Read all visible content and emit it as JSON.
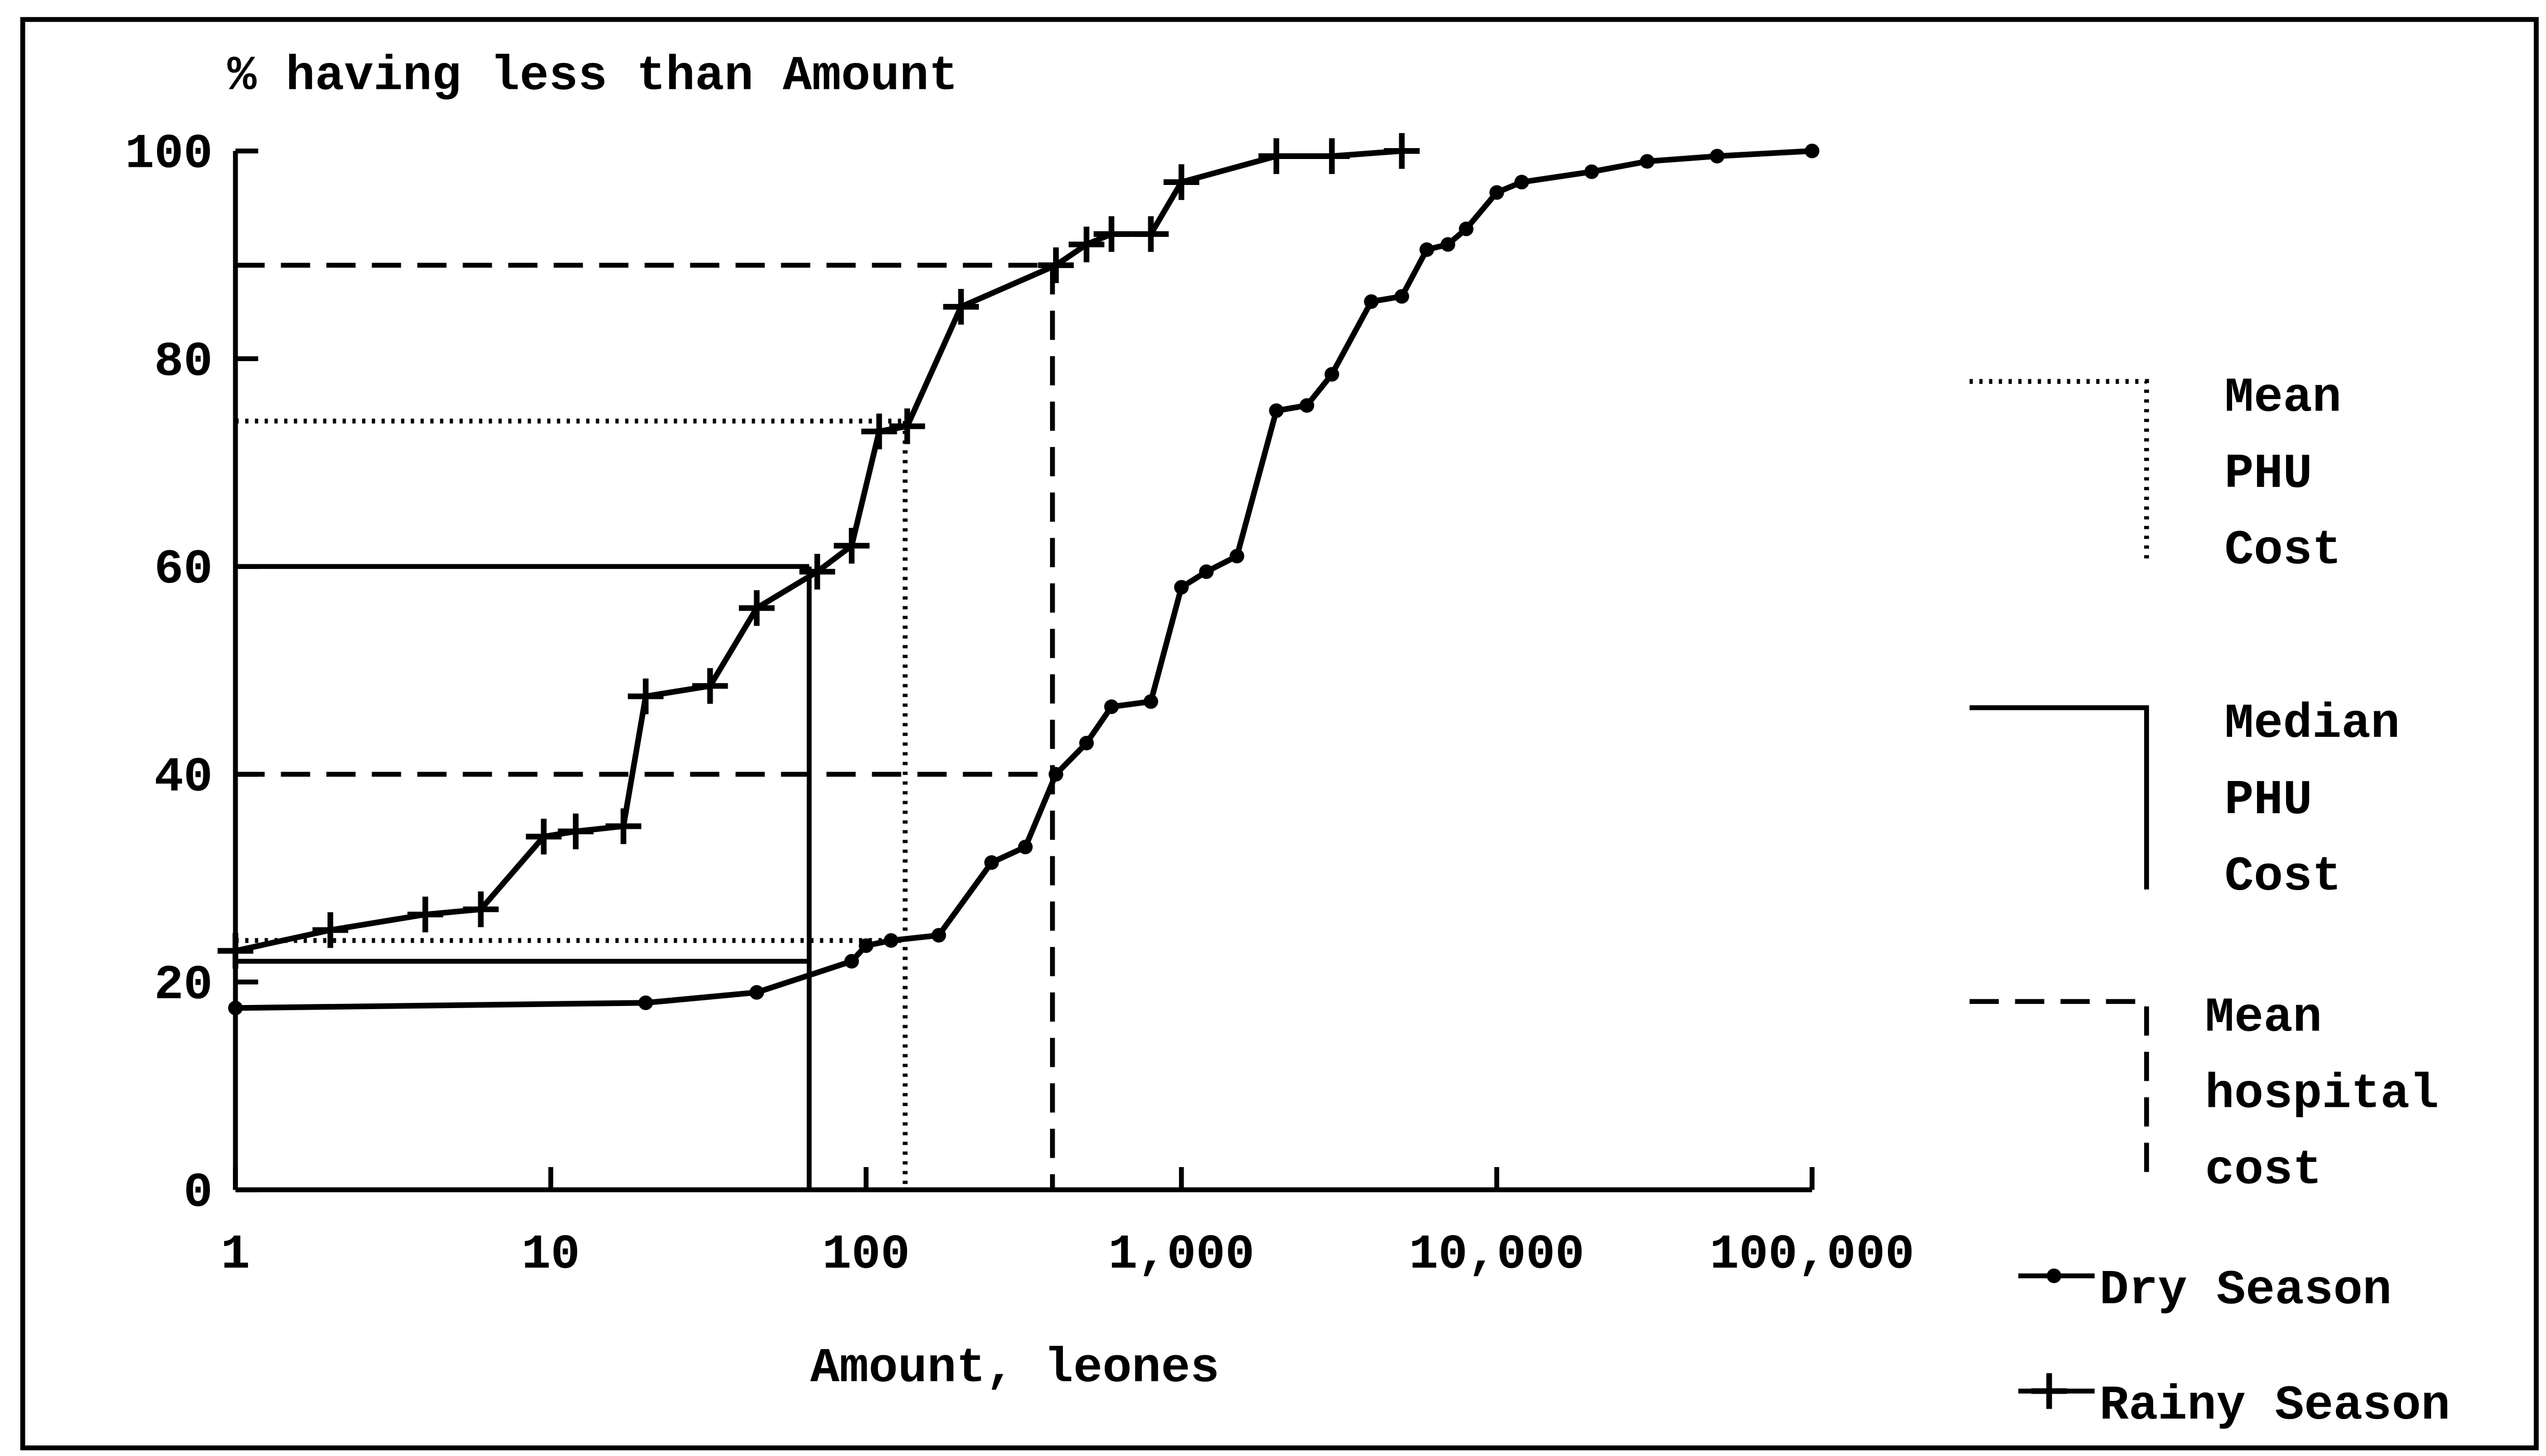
{
  "chart_data": {
    "type": "line",
    "title": "% having less than Amount",
    "x_label": "Amount, leones",
    "xscale": "log",
    "xlim": [
      1,
      100000
    ],
    "xticks": [
      1,
      10,
      100,
      {
        "value": 1000,
        "label": "1,000"
      },
      {
        "value": 10000,
        "label": "10,000"
      },
      {
        "value": 100000,
        "label": "100,000"
      }
    ],
    "ylim": [
      0,
      100
    ],
    "yticks": [
      0,
      20,
      40,
      60,
      80,
      100
    ],
    "legend": "right",
    "series": [
      {
        "name": "Dry Season",
        "color": "#000000",
        "marker": "dot",
        "x": [
          1,
          20,
          45,
          90,
          100,
          120,
          170,
          250,
          320,
          400,
          500,
          600,
          800,
          1000,
          1200,
          1500,
          2000,
          2500,
          3000,
          4000,
          5000,
          6000,
          7000,
          8000,
          10000,
          12000,
          20000,
          30000,
          50000,
          100000
        ],
        "values": [
          17.5,
          18,
          19,
          22,
          23.5,
          24,
          24.5,
          31.5,
          33,
          40,
          43,
          46.5,
          47,
          58,
          59.5,
          61,
          75,
          75.5,
          78.5,
          85.5,
          86,
          90.5,
          91,
          92.5,
          96,
          97,
          98,
          99,
          99.5,
          100
        ]
      },
      {
        "name": "Rainy Season",
        "color": "#000000",
        "marker": "plus",
        "x": [
          1,
          2,
          4,
          6,
          9.5,
          12,
          17,
          20,
          32,
          45,
          70,
          90,
          110,
          135,
          200,
          400,
          500,
          600,
          800,
          1000,
          2000,
          3000,
          5000
        ],
        "values": [
          23,
          25,
          26.5,
          27,
          34,
          34.5,
          35,
          47.5,
          48.5,
          56,
          59.5,
          62,
          73,
          73.5,
          85,
          89,
          91,
          92,
          92,
          97,
          99.5,
          99.5,
          100
        ]
      }
    ],
    "reference_lines": [
      {
        "name": "Mean PHU Cost",
        "style": "dotted",
        "x": 133,
        "y": [
          74,
          24
        ]
      },
      {
        "name": "Median PHU Cost",
        "style": "solid",
        "x": 66,
        "y": [
          60,
          22
        ]
      },
      {
        "name": "Mean hospital cost",
        "style": "dashed",
        "x": 390,
        "y": [
          89,
          40
        ]
      }
    ]
  }
}
